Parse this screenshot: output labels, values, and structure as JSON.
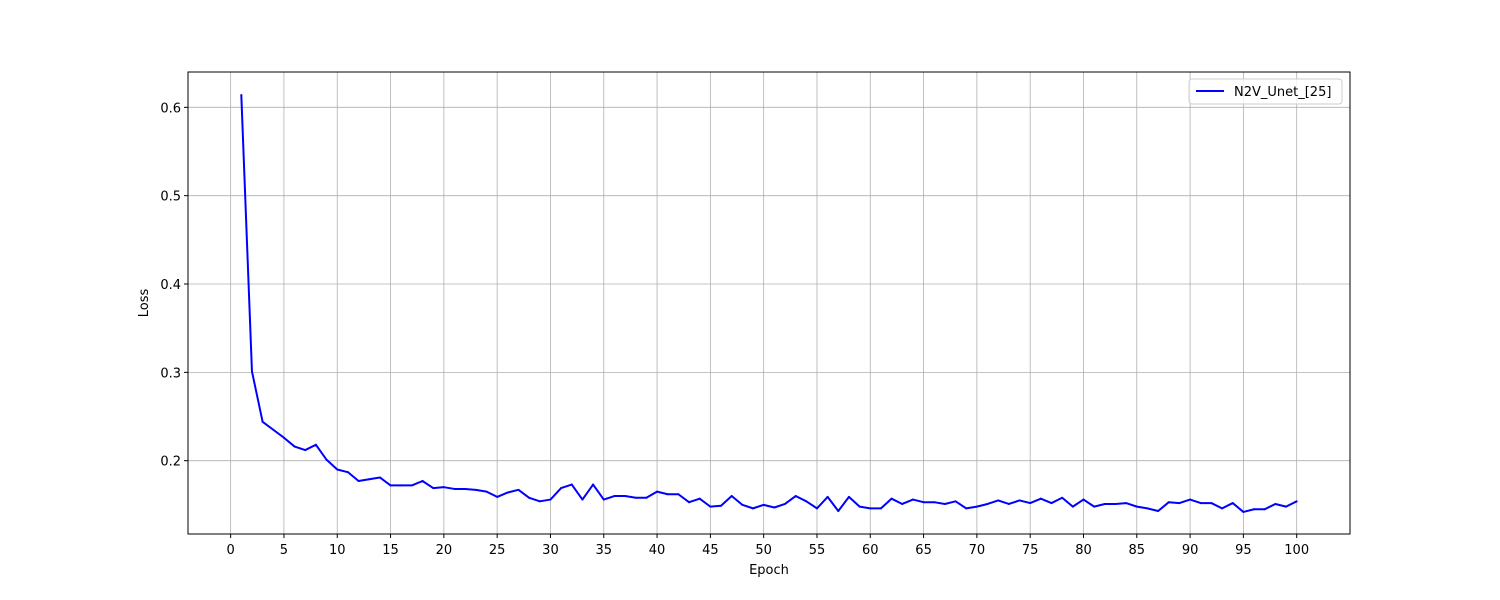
{
  "chart_data": {
    "type": "line",
    "title": "",
    "xlabel": "Epoch",
    "ylabel": "Loss",
    "xlim": [
      -4,
      105
    ],
    "ylim": [
      0.117,
      0.64
    ],
    "xticks": [
      0,
      5,
      10,
      15,
      20,
      25,
      30,
      35,
      40,
      45,
      50,
      55,
      60,
      65,
      70,
      75,
      80,
      85,
      90,
      95,
      100
    ],
    "yticks": [
      0.2,
      0.3,
      0.4,
      0.5,
      0.6
    ],
    "ytick_labels": [
      "0.2",
      "0.3",
      "0.4",
      "0.5",
      "0.6"
    ],
    "grid": true,
    "legend_position": "upper right",
    "series": [
      {
        "name": "N2V_Unet_[25]",
        "color": "#0000ff",
        "x": [
          1,
          2,
          3,
          4,
          5,
          6,
          7,
          8,
          9,
          10,
          11,
          12,
          13,
          14,
          15,
          16,
          17,
          18,
          19,
          20,
          21,
          22,
          23,
          24,
          25,
          26,
          27,
          28,
          29,
          30,
          31,
          32,
          33,
          34,
          35,
          36,
          37,
          38,
          39,
          40,
          41,
          42,
          43,
          44,
          45,
          46,
          47,
          48,
          49,
          50,
          51,
          52,
          53,
          54,
          55,
          56,
          57,
          58,
          59,
          60,
          61,
          62,
          63,
          64,
          65,
          66,
          67,
          68,
          69,
          70,
          71,
          72,
          73,
          74,
          75,
          76,
          77,
          78,
          79,
          80,
          81,
          82,
          83,
          84,
          85,
          86,
          87,
          88,
          89,
          90,
          91,
          92,
          93,
          94,
          95,
          96,
          97,
          98,
          99,
          100
        ],
        "y": [
          0.614,
          0.301,
          0.244,
          0.235,
          0.226,
          0.216,
          0.212,
          0.218,
          0.201,
          0.19,
          0.187,
          0.177,
          0.179,
          0.181,
          0.172,
          0.172,
          0.172,
          0.177,
          0.169,
          0.17,
          0.168,
          0.168,
          0.167,
          0.165,
          0.159,
          0.164,
          0.167,
          0.158,
          0.154,
          0.156,
          0.169,
          0.173,
          0.156,
          0.173,
          0.156,
          0.16,
          0.16,
          0.158,
          0.158,
          0.165,
          0.162,
          0.162,
          0.153,
          0.157,
          0.148,
          0.149,
          0.16,
          0.15,
          0.146,
          0.15,
          0.147,
          0.151,
          0.16,
          0.154,
          0.146,
          0.159,
          0.143,
          0.159,
          0.148,
          0.146,
          0.146,
          0.157,
          0.151,
          0.156,
          0.153,
          0.153,
          0.151,
          0.154,
          0.146,
          0.148,
          0.151,
          0.155,
          0.151,
          0.155,
          0.152,
          0.157,
          0.152,
          0.158,
          0.148,
          0.156,
          0.148,
          0.151,
          0.151,
          0.152,
          0.148,
          0.146,
          0.143,
          0.153,
          0.152,
          0.156,
          0.152,
          0.152,
          0.146,
          0.152,
          0.142,
          0.145,
          0.145,
          0.151,
          0.148,
          0.154
        ]
      }
    ]
  }
}
